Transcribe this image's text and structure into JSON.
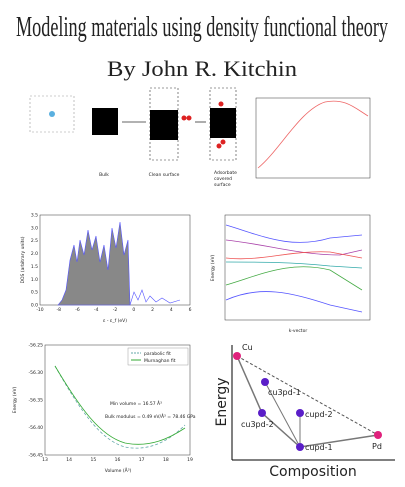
{
  "header": {
    "title": "Modeling materials using density functional theory",
    "author": "By John R. Kitchin"
  },
  "surface_panel": {
    "labels": [
      "Bulk",
      "Clean surface",
      "Adsorbate",
      "covered",
      "surface"
    ]
  },
  "dos_panel": {
    "ylabel": "DOS (arbitrary units)",
    "xlabel": "ε - ε_f (eV)",
    "yticks": [
      "0.0",
      "0.5",
      "1.0",
      "1.5",
      "2.0",
      "2.5",
      "3.0",
      "3.5"
    ],
    "xticks": [
      "-10",
      "-8",
      "-6",
      "-4",
      "-2",
      "0",
      "2",
      "4",
      "6"
    ]
  },
  "band_panel": {
    "ylabel": "Energy (eV)",
    "xlabel": "k-vector"
  },
  "eos_panel": {
    "ylabel": "Energy (eV)",
    "xlabel": "Volume (Å³)",
    "legend": [
      "parabolic fit",
      "Murnaghan fit"
    ],
    "notes": [
      "Min volume = 16.57 Å³",
      "Bulk modulus = 0.49 eV/Å³ = 78.46 GPa"
    ],
    "yticks": [
      "-56.25",
      "-56.30",
      "-56.35",
      "-56.40",
      "-56.45"
    ],
    "xticks": [
      "13",
      "14",
      "15",
      "16",
      "17",
      "18",
      "19"
    ]
  },
  "composition_panel": {
    "ylabel": "Energy",
    "xlabel": "Composition",
    "nodes": [
      "Cu",
      "Pd",
      "cu3pd-1",
      "cu3pd-2",
      "cupd-2",
      "cupd-1"
    ]
  }
}
